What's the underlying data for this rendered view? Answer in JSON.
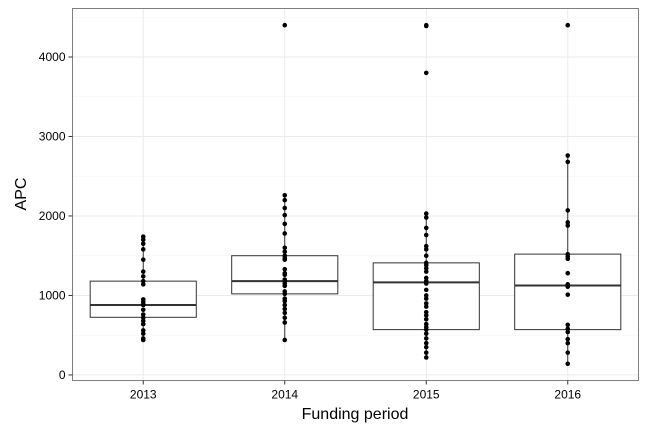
{
  "chart_data": {
    "type": "box",
    "xlabel": "Funding period",
    "ylabel": "APC",
    "ylim": [
      -70,
      4610
    ],
    "yticks": [
      0,
      1000,
      2000,
      3000,
      4000
    ],
    "grid": true,
    "legend": "none",
    "colors": {
      "panel_border": "#7f7f7f",
      "grid_major": "#ebebeb",
      "grid_minor": "#f5f5f5",
      "box": "#333333",
      "points": "#000000"
    },
    "groups": [
      {
        "category": "2013",
        "box": {
          "lower_whisker": 440,
          "q1": 725,
          "median": 880,
          "q3": 1180,
          "upper_whisker": 1740
        },
        "points": [
          1740,
          1700,
          1650,
          1580,
          1450,
          1300,
          1240,
          1180,
          1140,
          950,
          920,
          890,
          880,
          820,
          760,
          720,
          680,
          640,
          560,
          520,
          460,
          440
        ]
      },
      {
        "category": "2014",
        "box": {
          "lower_whisker": 440,
          "q1": 1020,
          "median": 1180,
          "q3": 1500,
          "upper_whisker": 2260
        },
        "points": [
          4400,
          2260,
          2200,
          2100,
          2010,
          1900,
          1780,
          1600,
          1550,
          1500,
          1470,
          1450,
          1330,
          1280,
          1260,
          1200,
          1180,
          1150,
          1120,
          1050,
          1020,
          960,
          930,
          880,
          830,
          780,
          720,
          660,
          440
        ]
      },
      {
        "category": "2015",
        "box": {
          "lower_whisker": 220,
          "q1": 570,
          "median": 1165,
          "q3": 1410,
          "upper_whisker": 2030
        },
        "points": [
          4400,
          4390,
          3800,
          2030,
          1980,
          1850,
          1760,
          1620,
          1580,
          1500,
          1410,
          1380,
          1340,
          1300,
          1220,
          1180,
          1150,
          1070,
          1000,
          960,
          900,
          860,
          790,
          750,
          700,
          640,
          600,
          570,
          520,
          460,
          400,
          350,
          280,
          220
        ]
      },
      {
        "category": "2016",
        "box": {
          "lower_whisker": 140,
          "q1": 570,
          "median": 1125,
          "q3": 1520,
          "upper_whisker": 2760
        },
        "points": [
          4400,
          2760,
          2680,
          2070,
          1920,
          1880,
          1520,
          1490,
          1460,
          1280,
          1140,
          1110,
          1010,
          630,
          580,
          540,
          450,
          400,
          280,
          140
        ]
      }
    ]
  }
}
